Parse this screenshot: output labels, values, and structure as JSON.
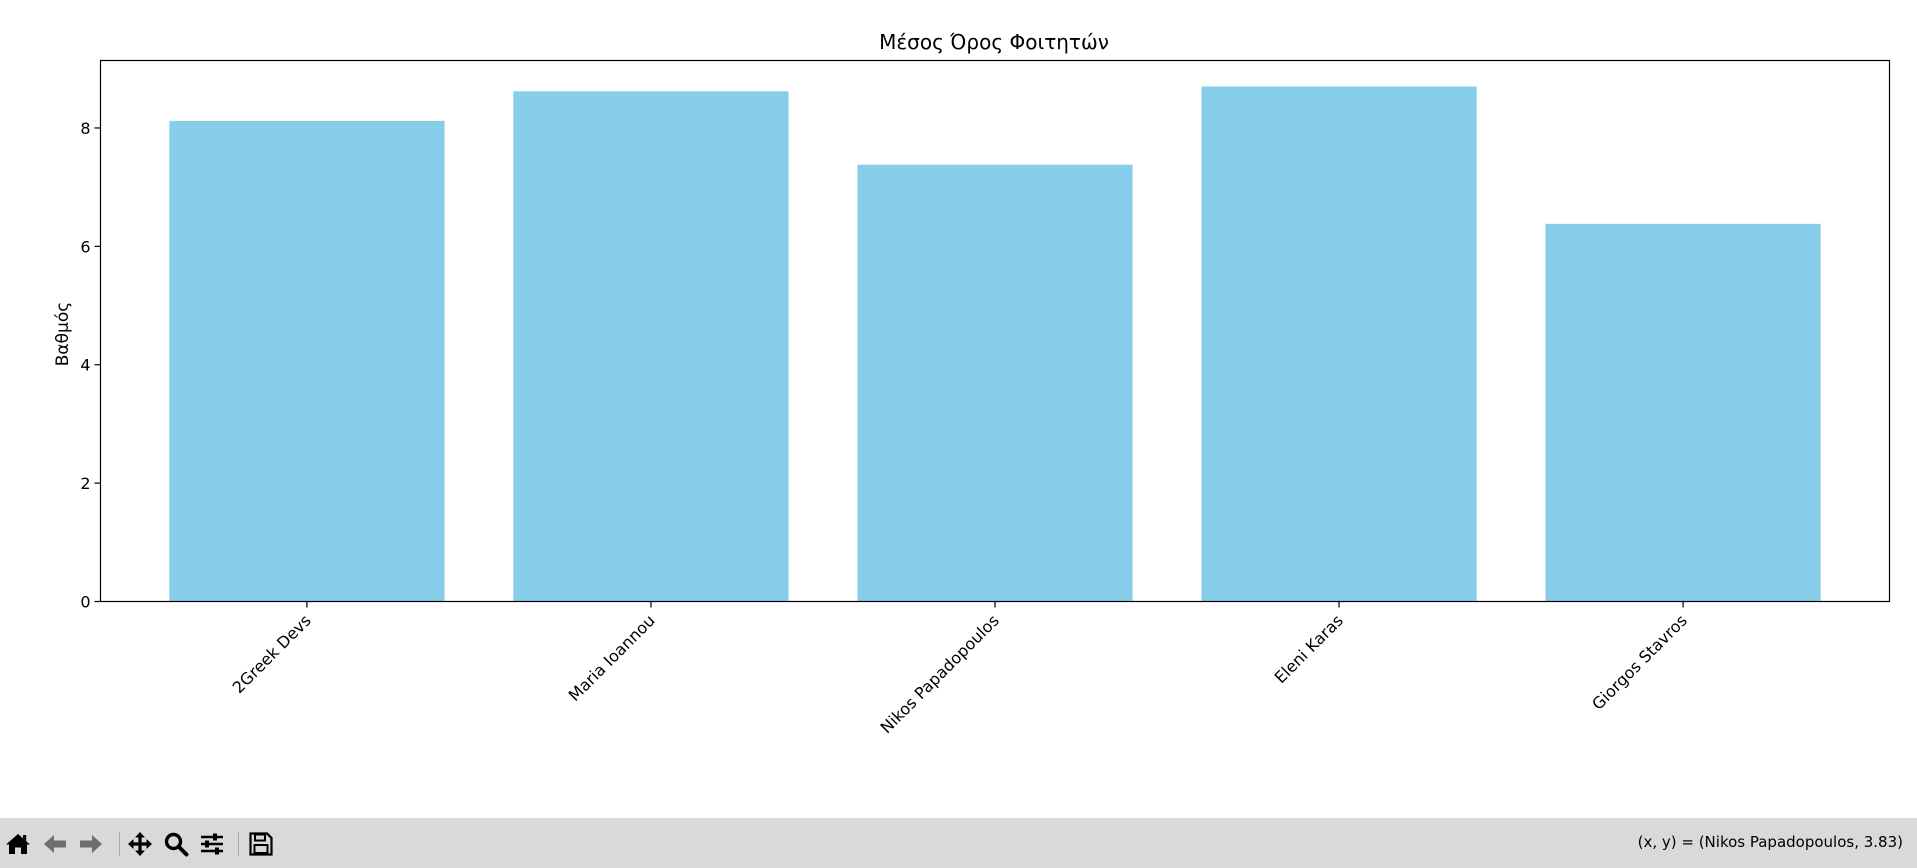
{
  "chart_data": {
    "type": "bar",
    "title": "Μέσος Όρος Φοιτητών",
    "xlabel": "",
    "ylabel": "Βαθμός",
    "categories": [
      "2Greek Devs",
      "Maria Ioannou",
      "Nikos Papadopoulos",
      "Eleni Karas",
      "Giorgos Stavros"
    ],
    "values": [
      8.12,
      8.62,
      7.38,
      8.7,
      6.38
    ],
    "ylim": [
      0,
      9.14
    ],
    "yticks": [
      0,
      2,
      4,
      6,
      8
    ],
    "ytick_labels": [
      "0",
      "2",
      "4",
      "6",
      "8"
    ],
    "bar_color": "#87ceeb",
    "grid": false,
    "legend": "none",
    "xtick_rotation": 45
  },
  "toolbar": {
    "buttons": [
      {
        "name": "home-icon",
        "action": "home"
      },
      {
        "name": "back-icon",
        "action": "back"
      },
      {
        "name": "forward-icon",
        "action": "forward"
      },
      {
        "name": "pan-icon",
        "action": "pan"
      },
      {
        "name": "zoom-icon",
        "action": "zoom"
      },
      {
        "name": "configure-subplots-icon",
        "action": "subplots"
      },
      {
        "name": "save-icon",
        "action": "save"
      }
    ],
    "coordinates": "(x, y) = (Nikos Papadopoulos, 3.83)"
  }
}
